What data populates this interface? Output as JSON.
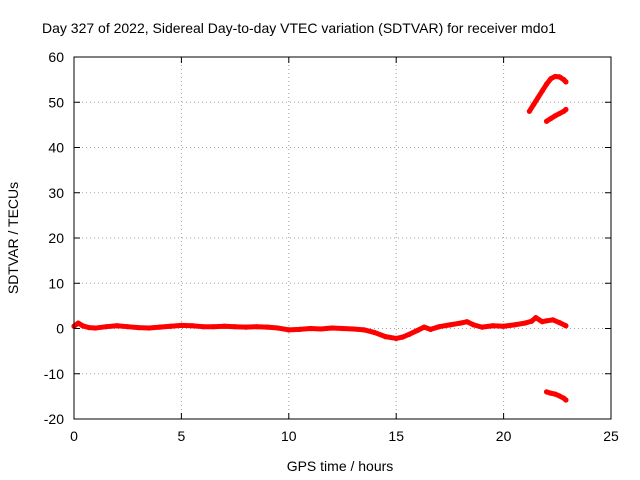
{
  "chart_data": {
    "type": "scatter",
    "title": "Day 327 of 2022, Sidereal Day-to-day VTEC variation (SDTVAR) for receiver mdo1",
    "xlabel": "GPS time / hours",
    "ylabel": "SDTVAR / TECUs",
    "xlim": [
      0,
      25
    ],
    "ylim": [
      -20,
      60
    ],
    "x_ticks": [
      0,
      5,
      10,
      15,
      20,
      25
    ],
    "y_ticks": [
      -20,
      -10,
      0,
      10,
      20,
      30,
      40,
      50,
      60
    ],
    "grid": true,
    "legend": "none",
    "series_color": "#ff0000",
    "series": [
      {
        "points": [
          [
            0.0,
            0.5
          ],
          [
            0.2,
            1.2
          ],
          [
            0.4,
            0.6
          ],
          [
            0.7,
            0.2
          ],
          [
            1.0,
            0.1
          ],
          [
            1.5,
            0.4
          ],
          [
            2.0,
            0.6
          ],
          [
            2.5,
            0.4
          ],
          [
            3.0,
            0.2
          ],
          [
            3.5,
            0.1
          ],
          [
            4.0,
            0.3
          ],
          [
            4.5,
            0.5
          ],
          [
            5.0,
            0.7
          ],
          [
            5.5,
            0.6
          ],
          [
            6.0,
            0.4
          ],
          [
            6.5,
            0.4
          ],
          [
            7.0,
            0.5
          ],
          [
            7.5,
            0.4
          ],
          [
            8.0,
            0.3
          ],
          [
            8.5,
            0.4
          ],
          [
            9.0,
            0.3
          ],
          [
            9.5,
            0.1
          ],
          [
            10.0,
            -0.3
          ],
          [
            10.5,
            -0.2
          ],
          [
            11.0,
            0.0
          ],
          [
            11.5,
            -0.1
          ],
          [
            12.0,
            0.1
          ],
          [
            12.5,
            0.0
          ],
          [
            13.0,
            -0.1
          ],
          [
            13.5,
            -0.3
          ],
          [
            14.0,
            -0.9
          ],
          [
            14.5,
            -1.8
          ],
          [
            15.0,
            -2.2
          ],
          [
            15.3,
            -1.9
          ],
          [
            15.6,
            -1.3
          ],
          [
            16.0,
            -0.4
          ],
          [
            16.3,
            0.3
          ],
          [
            16.6,
            -0.2
          ],
          [
            17.0,
            0.4
          ],
          [
            17.5,
            0.8
          ],
          [
            18.0,
            1.2
          ],
          [
            18.3,
            1.5
          ],
          [
            18.6,
            0.8
          ],
          [
            19.0,
            0.3
          ],
          [
            19.5,
            0.6
          ],
          [
            20.0,
            0.5
          ],
          [
            20.5,
            0.8
          ],
          [
            21.0,
            1.2
          ],
          [
            21.3,
            1.6
          ],
          [
            21.5,
            2.4
          ],
          [
            21.8,
            1.5
          ],
          [
            22.0,
            1.7
          ],
          [
            22.3,
            1.9
          ],
          [
            22.6,
            1.3
          ],
          [
            22.9,
            0.6
          ]
        ]
      },
      {
        "points": [
          [
            21.2,
            48.0
          ],
          [
            21.4,
            49.5
          ],
          [
            21.6,
            51.0
          ],
          [
            21.8,
            52.5
          ],
          [
            22.0,
            54.0
          ],
          [
            22.2,
            55.2
          ],
          [
            22.4,
            55.7
          ],
          [
            22.6,
            55.6
          ],
          [
            22.8,
            55.0
          ],
          [
            22.9,
            54.5
          ]
        ]
      },
      {
        "points": [
          [
            22.0,
            45.8
          ],
          [
            22.2,
            46.4
          ],
          [
            22.4,
            47.0
          ],
          [
            22.6,
            47.5
          ],
          [
            22.8,
            48.0
          ],
          [
            22.9,
            48.4
          ]
        ]
      },
      {
        "points": [
          [
            22.0,
            -14.0
          ],
          [
            22.2,
            -14.3
          ],
          [
            22.4,
            -14.5
          ],
          [
            22.6,
            -14.9
          ],
          [
            22.8,
            -15.4
          ],
          [
            22.9,
            -15.8
          ]
        ]
      }
    ]
  }
}
